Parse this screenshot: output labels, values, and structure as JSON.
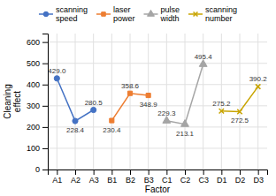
{
  "chart_data": {
    "type": "line",
    "categories": [
      "A1",
      "A2",
      "A3",
      "B1",
      "B2",
      "B3",
      "C1",
      "C2",
      "C3",
      "D1",
      "D2",
      "D3"
    ],
    "series": [
      {
        "name": "scanning\nspeed",
        "color": "#4472c4",
        "marker": "circle",
        "values": [
          429.0,
          228.4,
          280.5,
          null,
          null,
          null,
          null,
          null,
          null,
          null,
          null,
          null
        ],
        "value_labels": [
          "429.0",
          "228.4",
          "280.5",
          null,
          null,
          null,
          null,
          null,
          null,
          null,
          null,
          null
        ]
      },
      {
        "name": "laser\npower",
        "color": "#ed7d31",
        "marker": "square",
        "values": [
          null,
          null,
          null,
          230.4,
          358.6,
          348.9,
          null,
          null,
          null,
          null,
          null,
          null
        ],
        "value_labels": [
          null,
          null,
          null,
          "230.4",
          "358.6",
          "348.9",
          null,
          null,
          null,
          null,
          null,
          null
        ]
      },
      {
        "name": "pulse\nwidth",
        "color": "#a5a5a5",
        "marker": "triangle",
        "values": [
          null,
          null,
          null,
          null,
          null,
          null,
          229.3,
          213.1,
          495.4,
          null,
          null,
          null
        ],
        "value_labels": [
          null,
          null,
          null,
          null,
          null,
          null,
          "229.3",
          "213.1",
          "495.4",
          null,
          null,
          null
        ]
      },
      {
        "name": "scanning\nnumber",
        "color": "#c8a400",
        "marker": "x",
        "values": [
          null,
          null,
          null,
          null,
          null,
          null,
          null,
          null,
          null,
          275.2,
          272.5,
          390.2
        ],
        "value_labels": [
          null,
          null,
          null,
          null,
          null,
          null,
          null,
          null,
          null,
          "275.2",
          "272.5",
          "390.2"
        ]
      }
    ],
    "xlabel": "Factor",
    "ylabel": "Cleaning\neffect",
    "ylim": [
      0,
      640
    ],
    "yticks": [
      0,
      100,
      200,
      300,
      400,
      500,
      600
    ],
    "grid": true,
    "legend": "top",
    "data_labels": true
  }
}
